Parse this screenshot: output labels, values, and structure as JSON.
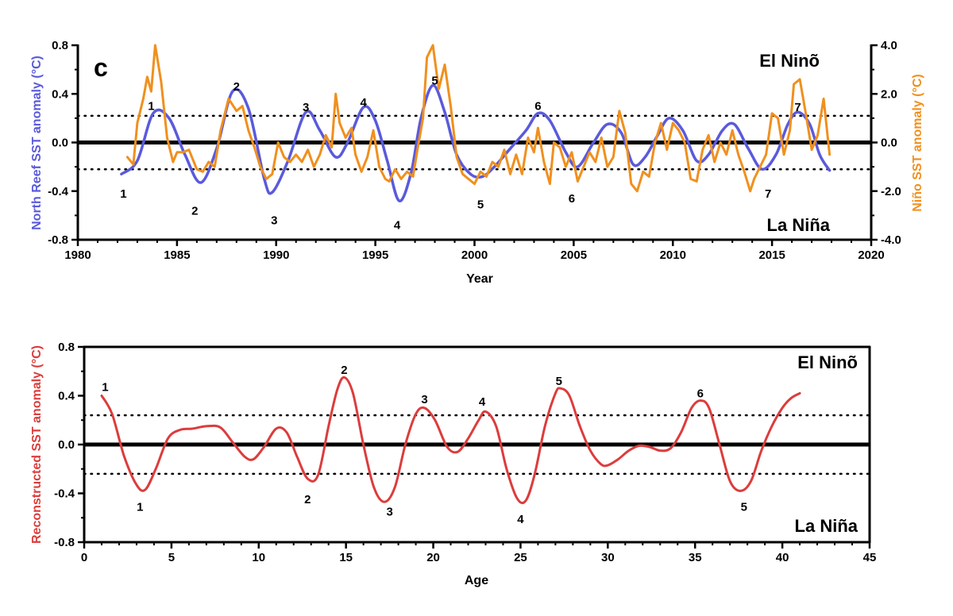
{
  "chart_data": [
    {
      "type": "line",
      "panel_label": "c",
      "xlabel": "Year",
      "ylabel_left": "North Reef SST anomaly (°C)",
      "ylabel_right": "Niño SST anomaly (°C)",
      "xlim": [
        1980,
        2020
      ],
      "xticks": [
        "1980",
        "1985",
        "1990",
        "1995",
        "2000",
        "2005",
        "2010",
        "2015",
        "2020"
      ],
      "ylim_left": [
        -0.8,
        0.8
      ],
      "yticks_left": [
        "-0.8",
        "-0.4",
        "0.0",
        "0.4",
        "0.8"
      ],
      "ylim_right": [
        -4.0,
        4.0
      ],
      "yticks_right": [
        "-4.0",
        "-2.0",
        "0.0",
        "2.0",
        "4.0"
      ],
      "threshold_lines": [
        0.22,
        -0.22
      ],
      "annotations": {
        "top": "El Ninõ",
        "bottom": "La Niña"
      },
      "colors": {
        "left": "#5a5adc",
        "right": "#f0901e"
      },
      "series": [
        {
          "name": "North Reef SST anomaly",
          "axis": "left",
          "color": "#5a5adc",
          "x": [
            1982.2,
            1983.0,
            1983.8,
            1984.6,
            1985.4,
            1986.2,
            1987.0,
            1987.8,
            1988.6,
            1989.4,
            1989.8,
            1990.6,
            1991.5,
            1992.2,
            1993.0,
            1993.6,
            1994.4,
            1995.0,
            1995.6,
            1996.2,
            1996.8,
            1997.3,
            1997.9,
            1998.5,
            1999.1,
            1999.8,
            2000.4,
            2001.0,
            2001.8,
            2002.6,
            2003.2,
            2003.8,
            2004.6,
            2005.2,
            2006.0,
            2006.7,
            2007.4,
            2008.0,
            2008.6,
            2009.2,
            2009.8,
            2010.5,
            2011.2,
            2011.8,
            2012.5,
            2013.1,
            2013.8,
            2014.5,
            2015.2,
            2015.8,
            2016.3,
            2016.9,
            2017.4,
            2017.9
          ],
          "y": [
            -0.26,
            -0.15,
            0.24,
            0.2,
            -0.1,
            -0.33,
            -0.05,
            0.42,
            0.28,
            -0.3,
            -0.41,
            -0.15,
            0.25,
            0.1,
            -0.12,
            0.0,
            0.29,
            0.18,
            -0.15,
            -0.48,
            -0.25,
            0.2,
            0.47,
            0.25,
            -0.1,
            -0.26,
            -0.28,
            -0.2,
            -0.05,
            0.1,
            0.24,
            0.18,
            -0.08,
            -0.2,
            0.0,
            0.15,
            0.08,
            -0.18,
            -0.12,
            0.05,
            0.2,
            0.1,
            -0.15,
            -0.1,
            0.1,
            0.15,
            -0.05,
            -0.22,
            -0.1,
            0.15,
            0.25,
            0.15,
            -0.1,
            -0.23
          ]
        },
        {
          "name": "Niño SST anomaly",
          "axis": "right",
          "color": "#f0901e",
          "x": [
            1982.5,
            1982.8,
            1983.0,
            1983.3,
            1983.5,
            1983.7,
            1983.9,
            1984.2,
            1984.5,
            1984.8,
            1985.0,
            1985.3,
            1985.6,
            1986.0,
            1986.3,
            1986.6,
            1986.9,
            1987.2,
            1987.6,
            1988.0,
            1988.3,
            1988.6,
            1988.9,
            1989.2,
            1989.5,
            1989.8,
            1990.1,
            1990.4,
            1990.7,
            1991.0,
            1991.3,
            1991.6,
            1991.9,
            1992.2,
            1992.5,
            1992.8,
            1993.0,
            1993.2,
            1993.5,
            1993.8,
            1994.0,
            1994.3,
            1994.6,
            1994.9,
            1995.2,
            1995.5,
            1995.7,
            1996.0,
            1996.3,
            1996.6,
            1996.9,
            1997.1,
            1997.4,
            1997.6,
            1997.9,
            1998.2,
            1998.5,
            1998.8,
            1999.1,
            1999.4,
            1999.7,
            2000.0,
            2000.3,
            2000.6,
            2000.9,
            2001.2,
            2001.5,
            2001.8,
            2002.1,
            2002.4,
            2002.7,
            2003.0,
            2003.2,
            2003.5,
            2003.8,
            2004.0,
            2004.3,
            2004.6,
            2004.9,
            2005.2,
            2005.5,
            2005.8,
            2006.1,
            2006.4,
            2006.7,
            2007.0,
            2007.3,
            2007.6,
            2007.9,
            2008.2,
            2008.5,
            2008.8,
            2009.1,
            2009.4,
            2009.7,
            2010.0,
            2010.3,
            2010.6,
            2010.9,
            2011.2,
            2011.5,
            2011.8,
            2012.1,
            2012.4,
            2012.7,
            2013.0,
            2013.3,
            2013.6,
            2013.9,
            2014.1,
            2014.4,
            2014.7,
            2015.0,
            2015.3,
            2015.6,
            2015.9,
            2016.1,
            2016.4,
            2016.7,
            2017.0,
            2017.3,
            2017.6,
            2017.9
          ],
          "y": [
            -0.6,
            -0.9,
            0.8,
            1.8,
            2.7,
            2.1,
            4.0,
            2.5,
            0.2,
            -0.8,
            -0.4,
            -0.4,
            -0.3,
            -1.1,
            -1.2,
            -0.8,
            -1.0,
            0.5,
            1.8,
            1.3,
            1.5,
            0.5,
            -0.2,
            -1.0,
            -1.5,
            -1.3,
            0.0,
            -0.6,
            -0.8,
            -0.5,
            -0.8,
            -0.3,
            -1.0,
            -0.5,
            0.3,
            -0.2,
            2.0,
            0.8,
            0.2,
            0.6,
            -0.5,
            -1.2,
            -0.6,
            0.5,
            -1.0,
            -1.5,
            -1.6,
            -1.1,
            -1.5,
            -1.2,
            -1.4,
            -0.4,
            1.0,
            3.5,
            4.0,
            2.2,
            3.2,
            1.5,
            -0.6,
            -1.3,
            -1.5,
            -1.7,
            -1.2,
            -1.4,
            -0.8,
            -1.0,
            -0.3,
            -1.3,
            -0.5,
            -1.3,
            0.2,
            -0.4,
            0.6,
            -0.8,
            -1.7,
            0.0,
            -0.2,
            -1.0,
            -0.4,
            -1.6,
            -1.0,
            -0.4,
            -0.8,
            0.2,
            -1.0,
            -0.6,
            1.3,
            0.4,
            -1.7,
            -2.0,
            -1.2,
            -1.4,
            0.0,
            0.8,
            -0.3,
            0.8,
            0.5,
            0.0,
            -1.5,
            -1.6,
            -0.3,
            0.3,
            -0.8,
            0.0,
            -0.5,
            0.5,
            -0.5,
            -1.2,
            -2.0,
            -1.5,
            -1.0,
            -0.5,
            1.2,
            1.0,
            -0.5,
            0.5,
            2.4,
            2.6,
            1.2,
            -0.3,
            0.3,
            1.8,
            -0.5
          ]
        }
      ],
      "point_labels": [
        {
          "text": "1",
          "x": 1983.7,
          "y": 0.3,
          "series": "upper"
        },
        {
          "text": "2",
          "x": 1988.0,
          "y": 0.46,
          "series": "upper"
        },
        {
          "text": "3",
          "x": 1991.5,
          "y": 0.29,
          "series": "upper"
        },
        {
          "text": "4",
          "x": 1994.4,
          "y": 0.33,
          "series": "upper"
        },
        {
          "text": "5",
          "x": 1998.0,
          "y": 0.51,
          "series": "upper"
        },
        {
          "text": "6",
          "x": 2003.2,
          "y": 0.3,
          "series": "upper"
        },
        {
          "text": "7",
          "x": 2016.3,
          "y": 0.29,
          "series": "upper"
        },
        {
          "text": "1",
          "x": 1982.3,
          "y": -0.42,
          "series": "lower"
        },
        {
          "text": "2",
          "x": 1985.9,
          "y": -0.56,
          "series": "lower"
        },
        {
          "text": "3",
          "x": 1989.9,
          "y": -0.64,
          "series": "lower"
        },
        {
          "text": "4",
          "x": 1996.1,
          "y": -0.68,
          "series": "lower"
        },
        {
          "text": "5",
          "x": 2000.3,
          "y": -0.51,
          "series": "lower"
        },
        {
          "text": "6",
          "x": 2004.9,
          "y": -0.46,
          "series": "lower"
        },
        {
          "text": "7",
          "x": 2014.8,
          "y": -0.42,
          "series": "lower"
        }
      ]
    },
    {
      "type": "line",
      "xlabel": "Age",
      "ylabel": "Reconstructed SST anomaly (°C)",
      "xlim": [
        0,
        45
      ],
      "xticks": [
        "0",
        "5",
        "10",
        "15",
        "20",
        "25",
        "30",
        "35",
        "40",
        "45"
      ],
      "ylim": [
        -0.8,
        0.8
      ],
      "yticks": [
        "-0.8",
        "-0.4",
        "0.0",
        "0.4",
        "0.8"
      ],
      "threshold_lines": [
        0.24,
        -0.24
      ],
      "annotations": {
        "top": "El Ninõ",
        "bottom": "La Niña"
      },
      "series": [
        {
          "name": "Reconstructed SST anomaly",
          "color": "#dc3c3c",
          "x": [
            1.0,
            1.6,
            2.3,
            3.0,
            3.5,
            4.1,
            4.8,
            5.5,
            6.2,
            7.0,
            7.8,
            8.5,
            9.2,
            9.7,
            10.3,
            11.0,
            11.6,
            12.2,
            12.8,
            13.4,
            14.0,
            14.5,
            14.9,
            15.4,
            16.0,
            16.6,
            17.2,
            17.8,
            18.4,
            19.0,
            19.5,
            20.1,
            20.8,
            21.4,
            22.0,
            22.6,
            23.0,
            23.6,
            24.2,
            24.8,
            25.3,
            25.8,
            26.4,
            27.0,
            27.3,
            27.8,
            28.4,
            29.0,
            29.6,
            30.0,
            30.6,
            31.2,
            31.8,
            32.4,
            33.0,
            33.6,
            34.2,
            34.8,
            35.3,
            35.8,
            36.4,
            37.0,
            37.6,
            38.2,
            38.8,
            39.4,
            40.0,
            40.5,
            41.0
          ],
          "y": [
            0.4,
            0.25,
            -0.1,
            -0.33,
            -0.37,
            -0.2,
            0.05,
            0.12,
            0.13,
            0.15,
            0.14,
            0.02,
            -0.1,
            -0.12,
            -0.02,
            0.13,
            0.1,
            -0.1,
            -0.28,
            -0.25,
            0.15,
            0.45,
            0.55,
            0.42,
            0.0,
            -0.35,
            -0.47,
            -0.35,
            0.0,
            0.25,
            0.3,
            0.2,
            -0.02,
            -0.06,
            0.05,
            0.2,
            0.27,
            0.15,
            -0.2,
            -0.44,
            -0.46,
            -0.25,
            0.15,
            0.42,
            0.46,
            0.4,
            0.15,
            -0.05,
            -0.16,
            -0.17,
            -0.12,
            -0.05,
            -0.01,
            -0.02,
            -0.05,
            -0.03,
            0.1,
            0.3,
            0.36,
            0.3,
            0.0,
            -0.3,
            -0.38,
            -0.3,
            -0.05,
            0.15,
            0.3,
            0.38,
            0.42
          ]
        }
      ],
      "point_labels": [
        {
          "text": "1",
          "x": 1.2,
          "y": 0.47,
          "series": "upper"
        },
        {
          "text": "2",
          "x": 14.9,
          "y": 0.61,
          "series": "upper"
        },
        {
          "text": "3",
          "x": 19.5,
          "y": 0.37,
          "series": "upper"
        },
        {
          "text": "4",
          "x": 22.8,
          "y": 0.35,
          "series": "upper"
        },
        {
          "text": "5",
          "x": 27.2,
          "y": 0.52,
          "series": "upper"
        },
        {
          "text": "6",
          "x": 35.3,
          "y": 0.42,
          "series": "upper"
        },
        {
          "text": "1",
          "x": 3.2,
          "y": -0.51,
          "series": "lower"
        },
        {
          "text": "2",
          "x": 12.8,
          "y": -0.45,
          "series": "lower"
        },
        {
          "text": "3",
          "x": 17.5,
          "y": -0.55,
          "series": "lower"
        },
        {
          "text": "4",
          "x": 25.0,
          "y": -0.61,
          "series": "lower"
        },
        {
          "text": "5",
          "x": 37.8,
          "y": -0.51,
          "series": "lower"
        }
      ]
    }
  ]
}
